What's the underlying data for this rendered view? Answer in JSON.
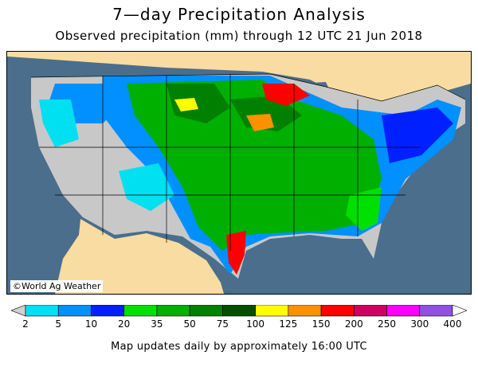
{
  "title": "7—day Precipitation Analysis",
  "subtitle": "Observed precipitation (mm) through 12 UTC 21 Jun 2018",
  "credit": "©World Ag Weather",
  "footer": "Map updates daily by approximately 16:00 UTC",
  "legend": {
    "labels": [
      "2",
      "5",
      "10",
      "20",
      "35",
      "50",
      "75",
      "100",
      "125",
      "150",
      "200",
      "250",
      "300",
      "400"
    ],
    "colors": [
      "#d0d0d0",
      "#00e0f0",
      "#0090ff",
      "#0020ff",
      "#00e000",
      "#00b000",
      "#008000",
      "#005000",
      "#ffff00",
      "#ff9000",
      "#ff0000",
      "#d00060",
      "#ff00ff",
      "#9050e0",
      "#ffffff"
    ]
  },
  "map": {
    "ocean_color": "#4a6e8c",
    "land_color": "#f9dca2",
    "dry_color": "#c8c8c8"
  }
}
